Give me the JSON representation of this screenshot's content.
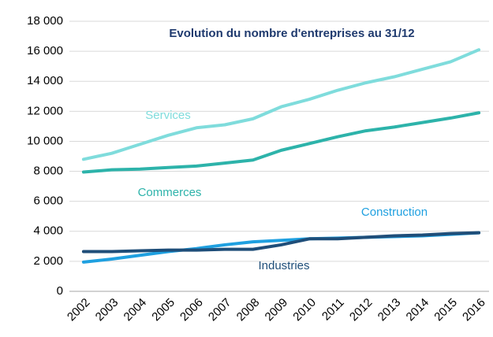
{
  "chart_data": {
    "type": "line",
    "title": "Evolution du nombre d'entreprises au 31/12",
    "categories": [
      "2002",
      "2003",
      "2004",
      "2005",
      "2006",
      "2007",
      "2008",
      "2009",
      "2010",
      "2011",
      "2012",
      "2013",
      "2014",
      "2015",
      "2016"
    ],
    "series": [
      {
        "name": "Services",
        "color": "#7fdcdc",
        "values": [
          8800,
          9200,
          9800,
          10400,
          10900,
          11100,
          11500,
          12300,
          12800,
          13400,
          13900,
          14300,
          14800,
          15300,
          16100
        ]
      },
      {
        "name": "Commerces",
        "color": "#2db3aa",
        "values": [
          7950,
          8100,
          8150,
          8250,
          8350,
          8550,
          8750,
          9400,
          9850,
          10300,
          10700,
          10950,
          11250,
          11550,
          11900
        ]
      },
      {
        "name": "Construction",
        "color": "#1fa0e0",
        "values": [
          1950,
          2150,
          2400,
          2650,
          2850,
          3100,
          3300,
          3400,
          3500,
          3550,
          3600,
          3650,
          3700,
          3800,
          3900
        ]
      },
      {
        "name": "Industries",
        "color": "#1f4e79",
        "values": [
          2650,
          2650,
          2700,
          2750,
          2750,
          2800,
          2800,
          3100,
          3500,
          3500,
          3600,
          3700,
          3750,
          3850,
          3900
        ]
      }
    ],
    "ylim": [
      0,
      18000
    ],
    "yticks": [
      0,
      {
        "value": 2000,
        "label": "2 000"
      },
      {
        "value": 4000,
        "label": "4 000"
      },
      {
        "value": 6000,
        "label": "6 000"
      },
      {
        "value": 8000,
        "label": "8 000"
      },
      {
        "value": 10000,
        "label": "10 000"
      },
      {
        "value": 12000,
        "label": "12 000"
      },
      {
        "value": 14000,
        "label": "14 000"
      },
      {
        "value": 16000,
        "label": "16 000"
      },
      {
        "value": 18000,
        "label": "18 000"
      }
    ],
    "grid": true
  }
}
